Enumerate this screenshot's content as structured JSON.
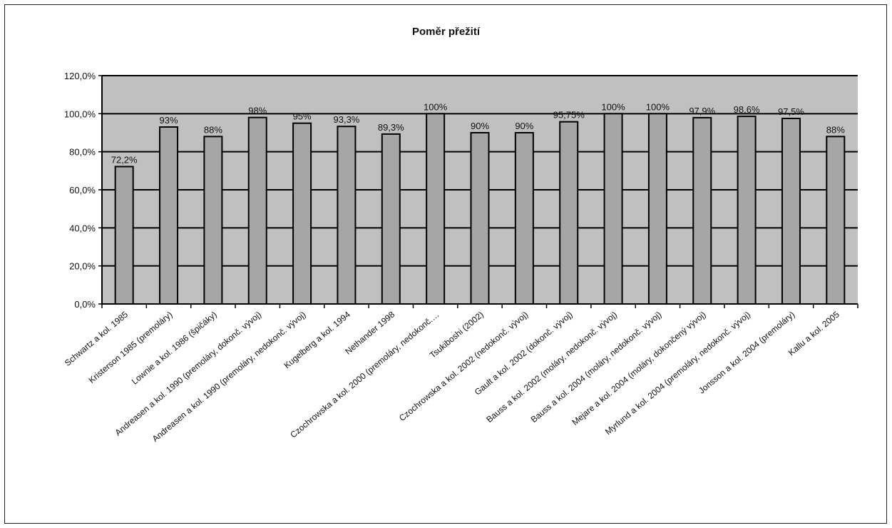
{
  "chart_data": {
    "type": "bar",
    "title": "Poměr přežití",
    "xlabel": "",
    "ylabel": "",
    "ylim": [
      0,
      120
    ],
    "ytick_labels": [
      "0,0%",
      "20,0%",
      "40,0%",
      "60,0%",
      "80,0%",
      "100,0%",
      "120,0%"
    ],
    "categories": [
      "Schwartz a kol. 1985",
      "Kristerson 1985 (premoláry)",
      "Lownie a kol. 1986 (špičáky)",
      "Andreasen a kol. 1990 (premoláry, dokonč. vývoj)",
      "Andreasen a kol. 1990 (premoláry, nedokonč. vývoj)",
      "Kugelberg a kol. 1994",
      "Nethander 1998",
      "Czochrowska a kol. 2000 (premoláry, nedokonč.…",
      "Tsukiboshi (2002)",
      "Czochrowska a kol. 2002 (nedokonč. vývoj)",
      "Gault a kol. 2002 (dokonč. vývoj)",
      "Bauss a kol. 2002 (moláry, nedokonč. vývoj)",
      "Bauss a kol. 2004 (moláry, nedokonč. vývoj)",
      "Mejare a kol. 2004 (moláry, dokončený vývoj)",
      "Myrlund a kol. 2004 (premoláry, nedokonč. vývoj)",
      "Jonsson a kol. 2004 (premoláry)",
      "Kallu a kol. 2005"
    ],
    "values": [
      72.2,
      93,
      88,
      98,
      95,
      93.3,
      89.3,
      100,
      90,
      90,
      95.75,
      100,
      100,
      97.9,
      98.6,
      97.5,
      88
    ],
    "data_labels": [
      "72,2%",
      "93%",
      "88%",
      "98%",
      "95%",
      "93,3%",
      "89,3%",
      "100%",
      "90%",
      "90%",
      "95,75%",
      "100%",
      "100%",
      "97,9%",
      "98,6%",
      "97,5%",
      "88%"
    ],
    "grid": true,
    "legend": "none",
    "colors": {
      "plot_background": "#c0c0c0",
      "bar_fill": "#a6a6a6",
      "bar_stroke": "#000000",
      "gridline": "#000000"
    }
  }
}
